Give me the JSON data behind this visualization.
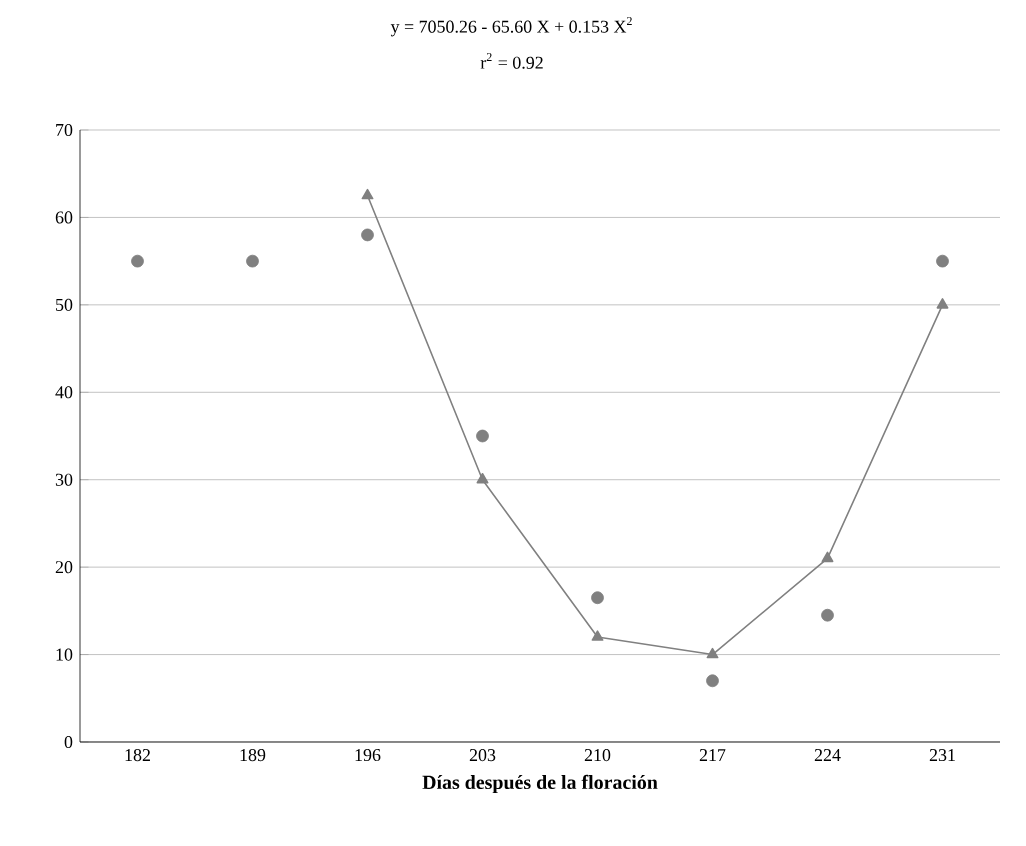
{
  "chart_data": {
    "type": "scatter",
    "title": "y = 7050.26 - 65.60 X + 0.153 X$^{2}$",
    "subtitle": "r$^{2}$ = 0.92",
    "xlabel": "Días después de la floración",
    "categories": [
      "182",
      "189",
      "196",
      "203",
      "210",
      "217",
      "224",
      "231"
    ],
    "series": [
      {
        "marker": "circle",
        "color": "#808080",
        "values": [
          55,
          55,
          58,
          35,
          16.5,
          7,
          14.5,
          55
        ]
      },
      {
        "type": "line",
        "marker": "triangle",
        "line_style": "solid",
        "color": "#808080",
        "values": [
          null,
          null,
          62.5,
          30,
          12,
          10,
          21,
          50
        ]
      }
    ],
    "ylim": [
      0,
      70
    ],
    "yticks": [
      0,
      10,
      20,
      30,
      40,
      50,
      60,
      70
    ],
    "grid": "y"
  }
}
